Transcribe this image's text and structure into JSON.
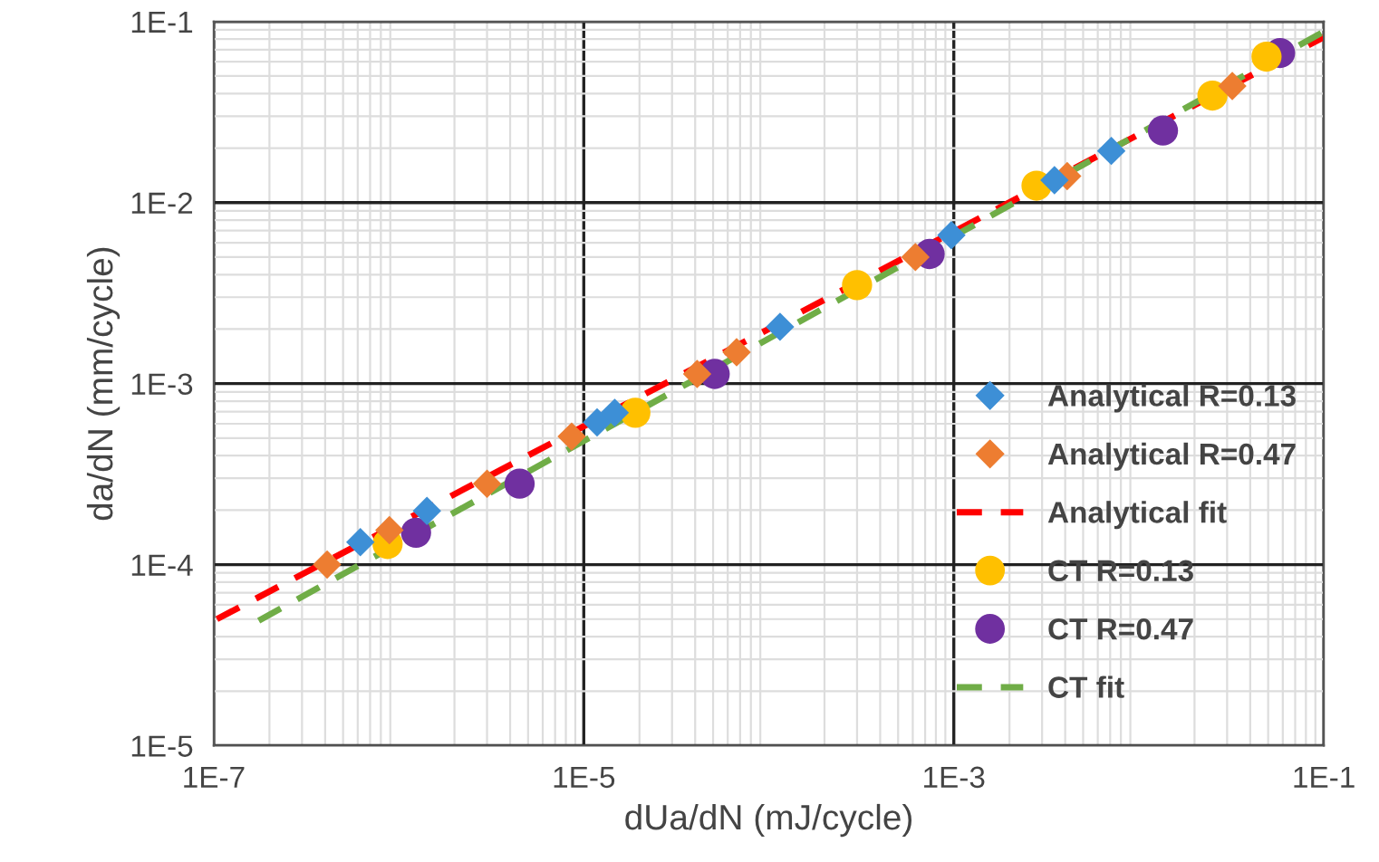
{
  "chart_data": {
    "type": "scatter",
    "xlabel": "dUa/dN (mJ/cycle)",
    "ylabel": "da/dN (mm/cycle)",
    "log": "xy",
    "grid": true,
    "legend": "bottom right",
    "xlim": [
      1e-07,
      0.1
    ],
    "ylim": [
      1e-05,
      0.1
    ],
    "xticks": [
      {
        "value": 1e-07,
        "label": "1E-7"
      },
      {
        "value": 1e-05,
        "label": "1E-5"
      },
      {
        "value": 0.001,
        "label": "1E-3"
      },
      {
        "value": 0.1,
        "label": "1E-1"
      }
    ],
    "yticks": [
      {
        "value": 1e-05,
        "label": "1E-5"
      },
      {
        "value": 0.0001,
        "label": "1E-4"
      },
      {
        "value": 0.001,
        "label": "1E-3"
      },
      {
        "value": 0.01,
        "label": "1E-2"
      },
      {
        "value": 0.1,
        "label": "1E-1"
      }
    ],
    "series": [
      {
        "name": "Analytical R=0.13",
        "marker": "diamond",
        "color": "#3d8fd6",
        "x": [
          6.2e-07,
          1.42e-06,
          1.18e-05,
          1.47e-05,
          0.000115,
          0.00097,
          0.0035,
          0.0071
        ],
        "values": [
          0.000133,
          0.000198,
          0.00061,
          0.00069,
          0.00206,
          0.0066,
          0.0133,
          0.0193
        ]
      },
      {
        "name": "Analytical R=0.47",
        "marker": "diamond",
        "color": "#ed7d31",
        "x": [
          4.1e-07,
          8.9e-07,
          3e-06,
          8.6e-06,
          4.1e-05,
          6.7e-05,
          0.00062,
          0.0041,
          0.032
        ],
        "values": [
          0.0001,
          0.000155,
          0.00028,
          0.00051,
          0.00113,
          0.00149,
          0.005,
          0.014,
          0.044
        ]
      },
      {
        "name": "Analytical fit",
        "type": "line",
        "line_style": "dashed",
        "marker": "none",
        "color": "#ff0000",
        "x": [
          1.04e-07,
          0.1
        ],
        "values": [
          5e-05,
          0.082
        ]
      },
      {
        "name": "CT R=0.13",
        "marker": "circle",
        "color": "#ffc000",
        "x": [
          8.7e-07,
          1.9e-05,
          0.0003,
          0.0028,
          0.025,
          0.049
        ],
        "values": [
          0.00013,
          0.00069,
          0.0035,
          0.0124,
          0.039,
          0.064
        ]
      },
      {
        "name": "CT R=0.47",
        "marker": "circle",
        "color": "#7030a0",
        "x": [
          1.24e-06,
          4.5e-06,
          5.1e-05,
          0.00074,
          0.0135,
          0.058
        ],
        "values": [
          0.00015,
          0.00028,
          0.00113,
          0.0052,
          0.025,
          0.067
        ]
      },
      {
        "name": "CT fit",
        "type": "line",
        "line_style": "dashed",
        "marker": "none",
        "color": "#70ad47",
        "x": [
          1.75e-07,
          0.1
        ],
        "values": [
          4.9e-05,
          0.088
        ]
      }
    ]
  }
}
